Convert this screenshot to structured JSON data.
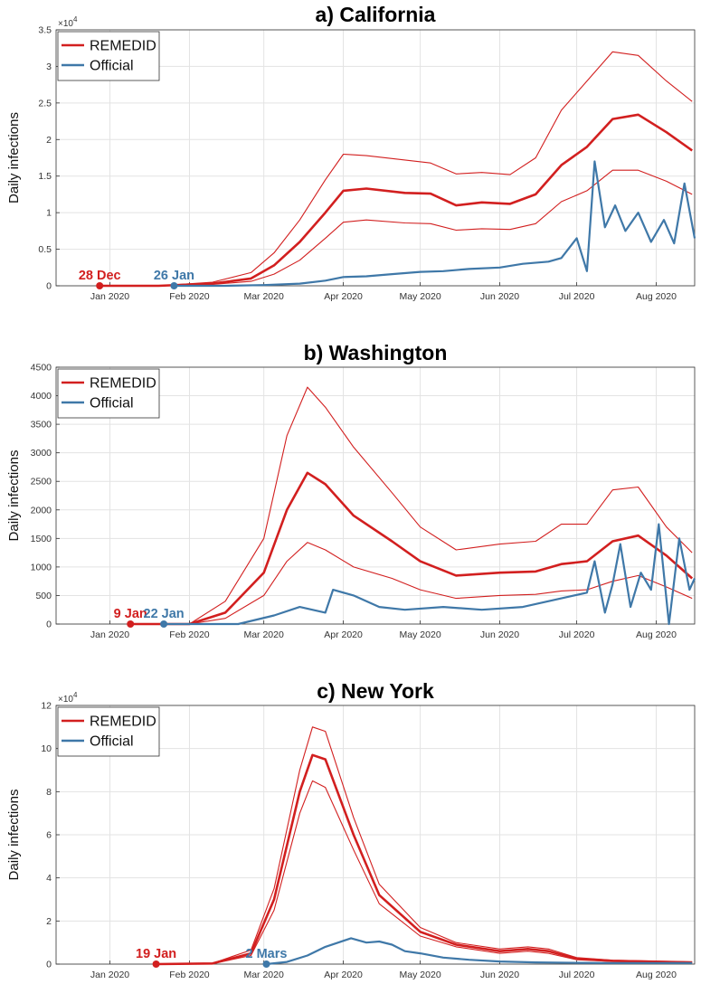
{
  "chart_data": [
    {
      "type": "line",
      "title": "a) California",
      "ylabel": "Daily infections",
      "y_exponent": "×10^4",
      "ylim": [
        0,
        35000
      ],
      "y_ticks": [
        0,
        5000,
        10000,
        15000,
        20000,
        25000,
        30000,
        35000
      ],
      "y_tick_labels": [
        "0",
        "0.5",
        "1",
        "1.5",
        "2",
        "2.5",
        "3",
        "3.5"
      ],
      "x_tick_labels": [
        "Jan 2020",
        "Feb 2020",
        "Mar 2020",
        "Apr 2020",
        "May 2020",
        "Jun 2020",
        "Jul 2020",
        "Aug 2020"
      ],
      "grid": true,
      "legend": "top-left",
      "series": [
        {
          "name": "REMEDID",
          "color": "#d21f1f",
          "x": [
            "2019-12-28",
            "2020-01-20",
            "2020-02-10",
            "2020-02-25",
            "2020-03-05",
            "2020-03-15",
            "2020-03-25",
            "2020-04-01",
            "2020-04-10",
            "2020-04-25",
            "2020-05-05",
            "2020-05-15",
            "2020-05-25",
            "2020-06-05",
            "2020-06-15",
            "2020-06-25",
            "2020-07-05",
            "2020-07-15",
            "2020-07-25",
            "2020-08-05",
            "2020-08-15"
          ],
          "values": [
            0,
            0,
            300,
            1000,
            2800,
            6000,
            10000,
            13000,
            13300,
            12700,
            12600,
            11000,
            11400,
            11200,
            12500,
            16500,
            19000,
            22800,
            23400,
            21000,
            18500
          ]
        },
        {
          "name": "REMEDID upper",
          "color": "#d21f1f",
          "x": [
            "2019-12-28",
            "2020-01-20",
            "2020-02-10",
            "2020-02-25",
            "2020-03-05",
            "2020-03-15",
            "2020-03-25",
            "2020-04-01",
            "2020-04-10",
            "2020-04-25",
            "2020-05-05",
            "2020-05-15",
            "2020-05-25",
            "2020-06-05",
            "2020-06-15",
            "2020-06-25",
            "2020-07-05",
            "2020-07-15",
            "2020-07-25",
            "2020-08-05",
            "2020-08-15"
          ],
          "values": [
            0,
            0,
            500,
            1800,
            4500,
            9000,
            14500,
            18000,
            17800,
            17200,
            16800,
            15300,
            15500,
            15200,
            17500,
            24000,
            28000,
            32000,
            31500,
            28000,
            25200
          ]
        },
        {
          "name": "REMEDID lower",
          "color": "#d21f1f",
          "x": [
            "2019-12-28",
            "2020-01-20",
            "2020-02-10",
            "2020-02-25",
            "2020-03-05",
            "2020-03-15",
            "2020-03-25",
            "2020-04-01",
            "2020-04-10",
            "2020-04-25",
            "2020-05-05",
            "2020-05-15",
            "2020-05-25",
            "2020-06-05",
            "2020-06-15",
            "2020-06-25",
            "2020-07-05",
            "2020-07-15",
            "2020-07-25",
            "2020-08-05",
            "2020-08-15"
          ],
          "values": [
            0,
            0,
            200,
            600,
            1600,
            3500,
            6500,
            8700,
            9000,
            8600,
            8500,
            7600,
            7800,
            7700,
            8500,
            11500,
            13000,
            15800,
            15800,
            14300,
            12500
          ]
        },
        {
          "name": "Official",
          "color": "#3f78a8",
          "x": [
            "2020-01-26",
            "2020-02-15",
            "2020-03-01",
            "2020-03-15",
            "2020-03-25",
            "2020-04-01",
            "2020-04-10",
            "2020-04-20",
            "2020-05-01",
            "2020-05-10",
            "2020-05-20",
            "2020-06-01",
            "2020-06-10",
            "2020-06-20",
            "2020-06-25",
            "2020-07-01",
            "2020-07-05",
            "2020-07-08",
            "2020-07-12",
            "2020-07-16",
            "2020-07-20",
            "2020-07-25",
            "2020-07-30",
            "2020-08-04",
            "2020-08-08",
            "2020-08-12",
            "2020-08-16"
          ],
          "values": [
            0,
            0,
            100,
            300,
            700,
            1200,
            1300,
            1600,
            1900,
            2000,
            2300,
            2500,
            3000,
            3300,
            3800,
            6500,
            2000,
            17000,
            8000,
            11000,
            7500,
            10000,
            6000,
            9000,
            5800,
            14000,
            6500
          ]
        }
      ],
      "markers": [
        {
          "label": "28 Dec",
          "x": "2019-12-28",
          "color": "#d21f1f"
        },
        {
          "label": "26 Jan",
          "x": "2020-01-26",
          "color": "#3f78a8"
        }
      ]
    },
    {
      "type": "line",
      "title": "b) Washington",
      "ylabel": "Daily infections",
      "ylim": [
        0,
        4500
      ],
      "y_ticks": [
        0,
        500,
        1000,
        1500,
        2000,
        2500,
        3000,
        3500,
        4000,
        4500
      ],
      "y_tick_labels": [
        "0",
        "500",
        "1000",
        "1500",
        "2000",
        "2500",
        "3000",
        "3500",
        "4000",
        "4500"
      ],
      "x_tick_labels": [
        "Jan 2020",
        "Feb 2020",
        "Mar 2020",
        "Apr 2020",
        "May 2020",
        "Jun 2020",
        "Jul 2020",
        "Aug 2020"
      ],
      "grid": true,
      "legend": "top-left",
      "series": [
        {
          "name": "REMEDID",
          "color": "#d21f1f",
          "x": [
            "2020-01-09",
            "2020-02-01",
            "2020-02-15",
            "2020-03-01",
            "2020-03-10",
            "2020-03-18",
            "2020-03-25",
            "2020-04-05",
            "2020-04-20",
            "2020-05-01",
            "2020-05-15",
            "2020-06-01",
            "2020-06-15",
            "2020-06-25",
            "2020-07-05",
            "2020-07-15",
            "2020-07-25",
            "2020-08-05",
            "2020-08-15"
          ],
          "values": [
            0,
            0,
            200,
            900,
            2000,
            2650,
            2450,
            1900,
            1450,
            1100,
            850,
            900,
            920,
            1050,
            1100,
            1450,
            1550,
            1200,
            800
          ]
        },
        {
          "name": "REMEDID upper",
          "color": "#d21f1f",
          "x": [
            "2020-01-09",
            "2020-02-01",
            "2020-02-15",
            "2020-03-01",
            "2020-03-10",
            "2020-03-18",
            "2020-03-25",
            "2020-04-05",
            "2020-04-20",
            "2020-05-01",
            "2020-05-15",
            "2020-06-01",
            "2020-06-15",
            "2020-06-25",
            "2020-07-05",
            "2020-07-15",
            "2020-07-25",
            "2020-08-05",
            "2020-08-15"
          ],
          "values": [
            0,
            0,
            400,
            1500,
            3300,
            4150,
            3800,
            3100,
            2300,
            1700,
            1300,
            1400,
            1450,
            1750,
            1750,
            2350,
            2400,
            1700,
            1250
          ]
        },
        {
          "name": "REMEDID lower",
          "color": "#d21f1f",
          "x": [
            "2020-01-09",
            "2020-02-01",
            "2020-02-15",
            "2020-03-01",
            "2020-03-10",
            "2020-03-18",
            "2020-03-25",
            "2020-04-05",
            "2020-04-20",
            "2020-05-01",
            "2020-05-15",
            "2020-06-01",
            "2020-06-15",
            "2020-06-25",
            "2020-07-05",
            "2020-07-15",
            "2020-07-25",
            "2020-08-05",
            "2020-08-15"
          ],
          "values": [
            0,
            0,
            100,
            500,
            1100,
            1430,
            1300,
            1000,
            800,
            600,
            450,
            500,
            520,
            580,
            600,
            750,
            850,
            650,
            450
          ]
        },
        {
          "name": "Official",
          "color": "#3f78a8",
          "x": [
            "2020-01-22",
            "2020-02-20",
            "2020-03-05",
            "2020-03-15",
            "2020-03-25",
            "2020-03-28",
            "2020-04-05",
            "2020-04-15",
            "2020-04-25",
            "2020-05-10",
            "2020-05-25",
            "2020-06-10",
            "2020-06-25",
            "2020-07-05",
            "2020-07-08",
            "2020-07-12",
            "2020-07-15",
            "2020-07-18",
            "2020-07-22",
            "2020-07-26",
            "2020-07-30",
            "2020-08-02",
            "2020-08-06",
            "2020-08-10",
            "2020-08-14",
            "2020-08-16"
          ],
          "values": [
            0,
            0,
            150,
            300,
            200,
            600,
            500,
            300,
            250,
            300,
            250,
            300,
            450,
            550,
            1100,
            200,
            700,
            1400,
            300,
            900,
            600,
            1750,
            0,
            1500,
            600,
            800
          ]
        }
      ],
      "markers": [
        {
          "label": "9 Jan",
          "x": "2020-01-09",
          "color": "#d21f1f"
        },
        {
          "label": "22 Jan",
          "x": "2020-01-22",
          "color": "#3f78a8"
        }
      ]
    },
    {
      "type": "line",
      "title": "c) New York",
      "ylabel": "Daily infections",
      "y_exponent": "×10^4",
      "ylim": [
        0,
        120000
      ],
      "y_ticks": [
        0,
        20000,
        40000,
        60000,
        80000,
        100000,
        120000
      ],
      "y_tick_labels": [
        "0",
        "2",
        "4",
        "6",
        "8",
        "10",
        "12"
      ],
      "x_tick_labels": [
        "Jan 2020",
        "Feb 2020",
        "Mar 2020",
        "Apr 2020",
        "May 2020",
        "Jun 2020",
        "Jul 2020",
        "Aug 2020"
      ],
      "grid": true,
      "legend": "top-left",
      "series": [
        {
          "name": "REMEDID",
          "color": "#d21f1f",
          "x": [
            "2020-01-19",
            "2020-02-10",
            "2020-02-25",
            "2020-03-05",
            "2020-03-15",
            "2020-03-20",
            "2020-03-25",
            "2020-04-05",
            "2020-04-15",
            "2020-05-01",
            "2020-05-15",
            "2020-06-01",
            "2020-06-12",
            "2020-06-20",
            "2020-07-01",
            "2020-07-15",
            "2020-08-15"
          ],
          "values": [
            0,
            300,
            5000,
            30000,
            80000,
            97000,
            95000,
            60000,
            32000,
            15000,
            9000,
            6000,
            7000,
            6000,
            2500,
            1500,
            800
          ]
        },
        {
          "name": "REMEDID upper",
          "color": "#d21f1f",
          "x": [
            "2020-01-19",
            "2020-02-10",
            "2020-02-25",
            "2020-03-05",
            "2020-03-15",
            "2020-03-20",
            "2020-03-25",
            "2020-04-05",
            "2020-04-15",
            "2020-05-01",
            "2020-05-15",
            "2020-06-01",
            "2020-06-12",
            "2020-06-20",
            "2020-07-01",
            "2020-07-15",
            "2020-08-15"
          ],
          "values": [
            0,
            400,
            6500,
            35000,
            90000,
            110000,
            108000,
            68000,
            37000,
            17000,
            10000,
            7000,
            8000,
            7000,
            3000,
            1800,
            1000
          ]
        },
        {
          "name": "REMEDID lower",
          "color": "#d21f1f",
          "x": [
            "2020-01-19",
            "2020-02-10",
            "2020-02-25",
            "2020-03-05",
            "2020-03-15",
            "2020-03-20",
            "2020-03-25",
            "2020-04-05",
            "2020-04-15",
            "2020-05-01",
            "2020-05-15",
            "2020-06-01",
            "2020-06-12",
            "2020-06-20",
            "2020-07-01",
            "2020-07-15",
            "2020-08-15"
          ],
          "values": [
            0,
            200,
            4000,
            25000,
            70000,
            85000,
            82000,
            53000,
            28000,
            13000,
            8000,
            5000,
            6000,
            5000,
            2000,
            1200,
            600
          ]
        },
        {
          "name": "Official",
          "color": "#3f78a8",
          "x": [
            "2020-03-02",
            "2020-03-10",
            "2020-03-18",
            "2020-03-25",
            "2020-03-30",
            "2020-04-04",
            "2020-04-10",
            "2020-04-15",
            "2020-04-20",
            "2020-04-25",
            "2020-05-01",
            "2020-05-10",
            "2020-05-20",
            "2020-06-01",
            "2020-06-15",
            "2020-07-01",
            "2020-07-15",
            "2020-08-15"
          ],
          "values": [
            0,
            1000,
            4000,
            8000,
            10000,
            12000,
            10000,
            10500,
            9000,
            6000,
            5000,
            3000,
            2000,
            1200,
            800,
            600,
            500,
            500
          ]
        }
      ],
      "markers": [
        {
          "label": "19 Jan",
          "x": "2020-01-19",
          "color": "#d21f1f"
        },
        {
          "label": "2 Mars",
          "x": "2020-03-02",
          "color": "#3f78a8"
        }
      ]
    }
  ]
}
